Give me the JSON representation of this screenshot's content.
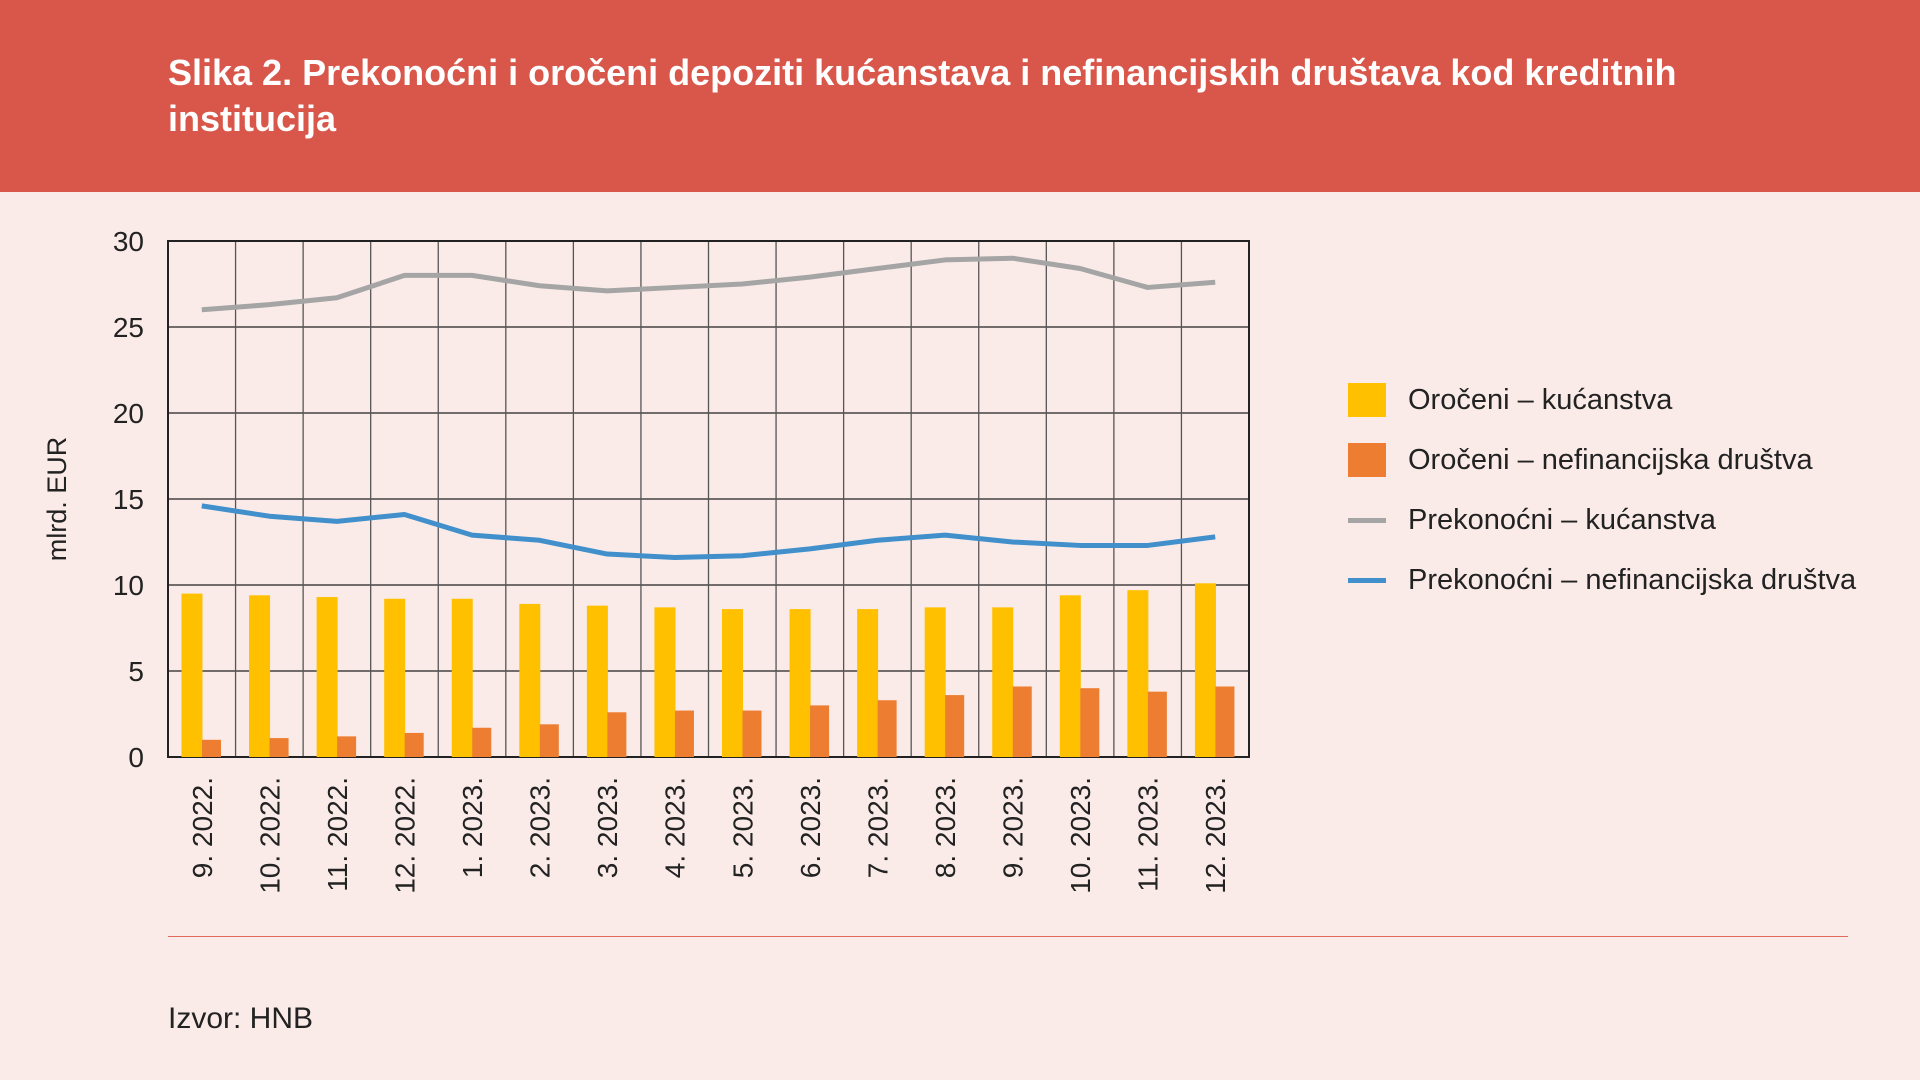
{
  "header": {
    "title": "Slika 2. Prekonoćni i oročeni depoziti kućanstava i nefinancijskih društava kod kreditnih institucija"
  },
  "source": "Izvor: HNB",
  "colors": {
    "header": "#d9574a",
    "yellow": "#ffc000",
    "orange": "#ed7d31",
    "gray": "#a5a5a5",
    "blue": "#418fcb"
  },
  "chart_data": {
    "type": "bar",
    "title": "Slika 2. Prekonoćni i oročeni depoziti kućanstava i nefinancijskih društava kod kreditnih institucija",
    "xlabel": "",
    "ylabel": "mlrd. EUR",
    "ylim": [
      0,
      30
    ],
    "yticks": [
      0,
      5,
      10,
      15,
      20,
      25,
      30
    ],
    "grid": true,
    "legend_position": "right",
    "categories": [
      "9. 2022.",
      "10. 2022.",
      "11. 2022.",
      "12. 2022.",
      "1. 2023.",
      "2. 2023.",
      "3. 2023.",
      "4. 2023.",
      "5. 2023.",
      "6. 2023.",
      "7. 2023.",
      "8. 2023.",
      "9. 2023.",
      "10. 2023.",
      "11. 2023.",
      "12. 2023."
    ],
    "series": [
      {
        "name": "Oročeni – kućanstva",
        "kind": "bar",
        "color": "#ffc000",
        "values": [
          9.5,
          9.4,
          9.3,
          9.2,
          9.2,
          8.9,
          8.8,
          8.7,
          8.6,
          8.6,
          8.6,
          8.7,
          8.7,
          9.4,
          9.7,
          10.1
        ]
      },
      {
        "name": "Oročeni – nefinancijska društva",
        "kind": "bar",
        "color": "#ed7d31",
        "values": [
          1.0,
          1.1,
          1.2,
          1.4,
          1.7,
          1.9,
          2.6,
          2.7,
          2.7,
          3.0,
          3.3,
          3.6,
          4.1,
          4.0,
          3.8,
          4.1
        ]
      },
      {
        "name": "Prekonoćni – kućanstva",
        "kind": "line",
        "color": "#a5a5a5",
        "values": [
          26.0,
          26.3,
          26.7,
          28.0,
          28.0,
          27.4,
          27.1,
          27.3,
          27.5,
          27.9,
          28.4,
          28.9,
          29.0,
          28.4,
          27.3,
          27.6
        ]
      },
      {
        "name": "Prekonoćni – nefinancijska društva",
        "kind": "line",
        "color": "#418fcb",
        "values": [
          14.6,
          14.0,
          13.7,
          14.1,
          12.9,
          12.6,
          11.8,
          11.6,
          11.7,
          12.1,
          12.6,
          12.9,
          12.5,
          12.3,
          12.3,
          12.8
        ]
      }
    ]
  }
}
